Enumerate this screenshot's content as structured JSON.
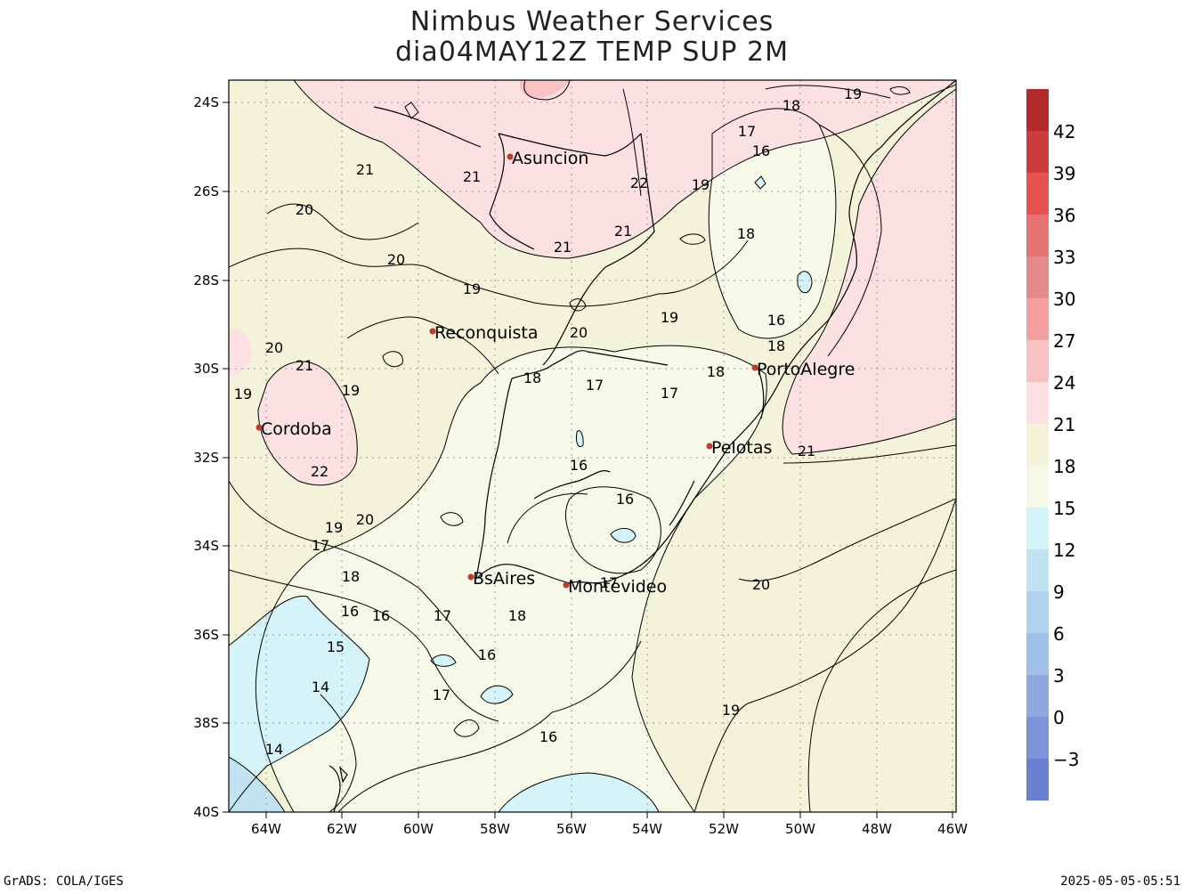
{
  "header": {
    "title_line1": "Nimbus Weather Services",
    "title_line2": "dia04MAY12Z TEMP SUP 2M"
  },
  "footer": {
    "left": "GrADS: COLA/IGES",
    "right": "2025-05-05-05:51"
  },
  "map": {
    "lat_ticks": [
      "24S",
      "26S",
      "28S",
      "30S",
      "32S",
      "34S",
      "36S",
      "38S",
      "40S"
    ],
    "lon_ticks": [
      "64W",
      "62W",
      "60W",
      "58W",
      "56W",
      "54W",
      "52W",
      "50W",
      "48W",
      "46W"
    ],
    "cities": [
      {
        "name": "Asuncion"
      },
      {
        "name": "Reconquista"
      },
      {
        "name": "Cordoba"
      },
      {
        "name": "PortoAlegre"
      },
      {
        "name": "Pelotas"
      },
      {
        "name": "BsAires"
      },
      {
        "name": "Montevideo"
      }
    ],
    "contour_labels": [
      "21",
      "21",
      "20",
      "20",
      "21",
      "22",
      "21",
      "19",
      "17",
      "18",
      "19",
      "16",
      "18",
      "19",
      "16",
      "18",
      "20",
      "19",
      "20",
      "21",
      "19",
      "19",
      "18",
      "17",
      "17",
      "18",
      "16",
      "16",
      "22",
      "19",
      "20",
      "17",
      "18",
      "16",
      "16",
      "17",
      "18",
      "17",
      "15",
      "16",
      "14",
      "17",
      "16",
      "14",
      "19",
      "20",
      "21"
    ]
  },
  "colorbar": {
    "labels": [
      "42",
      "39",
      "36",
      "33",
      "30",
      "27",
      "24",
      "21",
      "18",
      "15",
      "12",
      "9",
      "6",
      "3",
      "0",
      "−3"
    ],
    "colors": [
      "#b32a2a",
      "#cc3c3c",
      "#e45252",
      "#e67474",
      "#e58a8a",
      "#f5a0a0",
      "#f8c2c2",
      "#fce1e3",
      "#f2f3d9",
      "#f6f9e8",
      "#d4f4f9",
      "#c2e4f2",
      "#b0d2ee",
      "#a0c0e8",
      "#8fa8e0",
      "#7d94d8",
      "#6a80d0"
    ]
  },
  "colors": {
    "warm_21_24": "#fce1e3",
    "mild_18_21": "#f2f3d9",
    "cool_15_18": "#f6f9e8",
    "cold_12_15": "#d4f4f9",
    "colder_9_12": "#c2e4f2",
    "city_dot": "#c0392b"
  }
}
